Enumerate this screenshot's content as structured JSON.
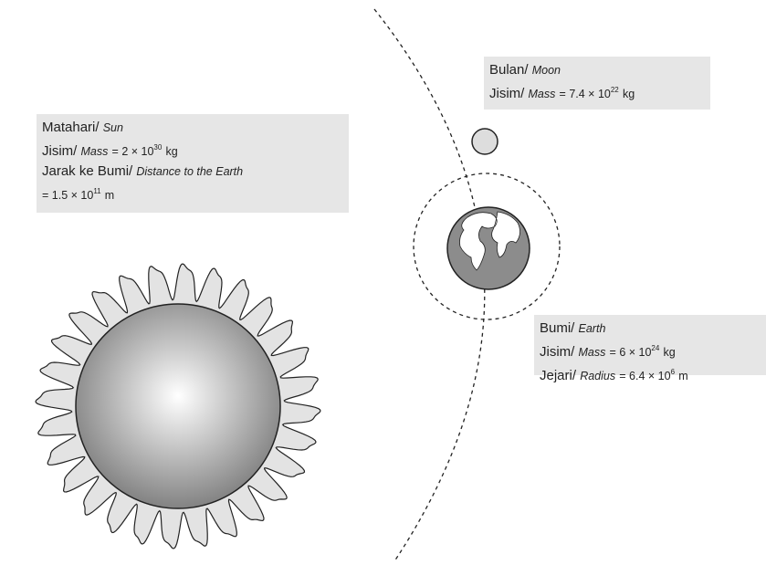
{
  "sun": {
    "name": "Matahari/",
    "name_en": "Sun",
    "mass_label": "Jisim/",
    "mass_label_en": "Mass",
    "mass_value": "= 2 × 10",
    "mass_exp": "30",
    "mass_unit": "kg",
    "distance_label": "Jarak ke Bumi/",
    "distance_label_en": "Distance to the Earth",
    "distance_value": "= 1.5 × 10",
    "distance_exp": "11",
    "distance_unit": "m"
  },
  "moon": {
    "name": "Bulan/",
    "name_en": "Moon",
    "mass_label": "Jisim/",
    "mass_label_en": "Mass",
    "mass_value": "= 7.4 × 10",
    "mass_exp": "22",
    "mass_unit": "kg"
  },
  "earth": {
    "name": "Bumi/",
    "name_en": "Earth",
    "mass_label": "Jisim/",
    "mass_label_en": "Mass",
    "mass_value": "= 6 × 10",
    "mass_exp": "24",
    "mass_unit": "kg",
    "radius_label": "Jejari/",
    "radius_label_en": "Radius",
    "radius_value": "= 6.4 × 10",
    "radius_exp": "6",
    "radius_unit": "m"
  }
}
